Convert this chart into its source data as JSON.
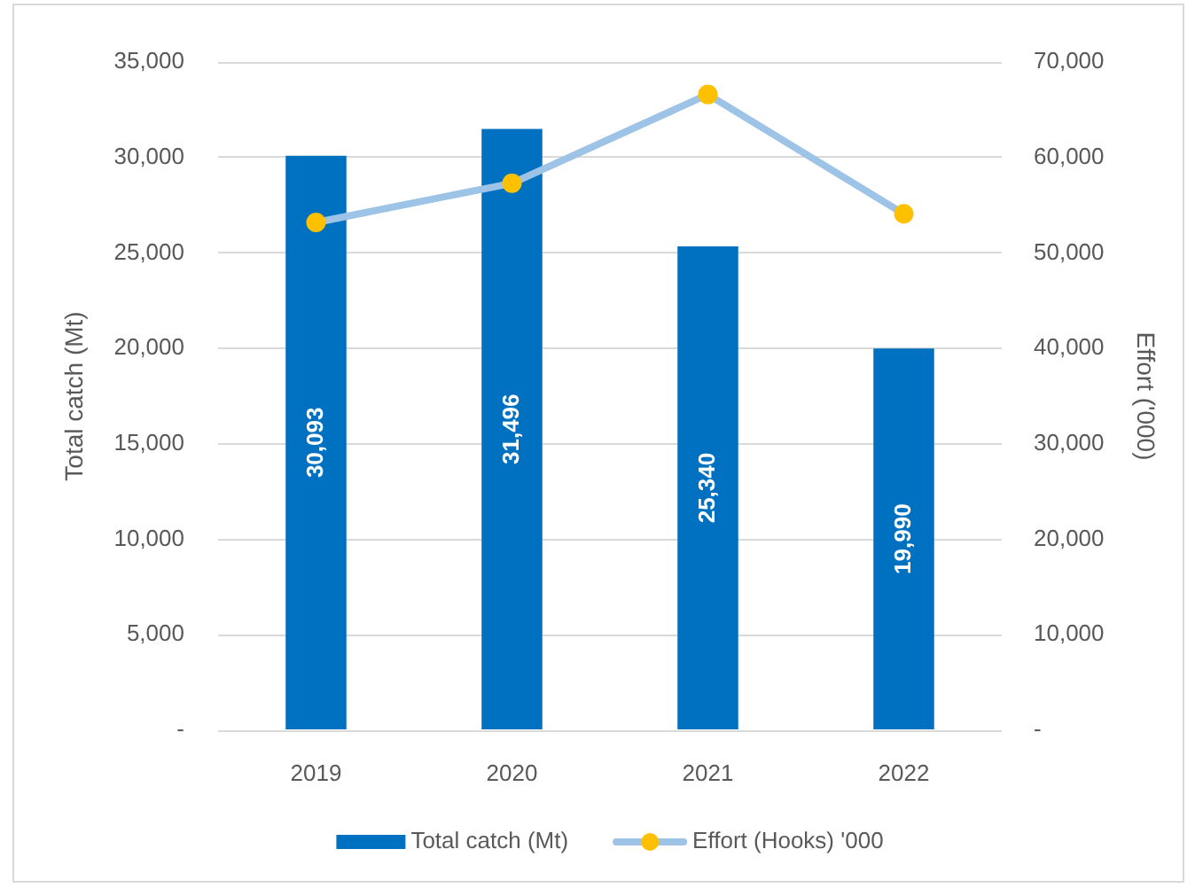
{
  "chart_data": {
    "type": "bar",
    "categories": [
      "2019",
      "2020",
      "2021",
      "2022"
    ],
    "series": [
      {
        "name": "Total catch (Mt)",
        "color": "#0070c0",
        "values": [
          30093,
          31496,
          25340,
          19990
        ],
        "value_labels": [
          "30,093",
          "31,496",
          "25,340",
          "19,990"
        ]
      },
      {
        "name": "Effort (Hooks) '000",
        "type": "line",
        "axis": "y2",
        "color": "#9dc3e6",
        "colors": [
          "#ffc000",
          "#ffc000",
          "#ffc000",
          "#ffc000"
        ],
        "values": [
          53200,
          57300,
          66600,
          54100
        ]
      }
    ],
    "ylabel": "Total catch (Mt)",
    "y2label": "Effort ('000)",
    "ylim": [
      0,
      35000
    ],
    "yticks": [
      {
        "value": 0,
        "label": "-"
      },
      {
        "value": 5000,
        "label": "5,000"
      },
      {
        "value": 10000,
        "label": "10,000"
      },
      {
        "value": 15000,
        "label": "15,000"
      },
      {
        "value": 20000,
        "label": "20,000"
      },
      {
        "value": 25000,
        "label": "25,000"
      },
      {
        "value": 30000,
        "label": "30,000"
      },
      {
        "value": 35000,
        "label": "35,000"
      }
    ],
    "y2lim": [
      0,
      70000
    ],
    "y2ticks": [
      {
        "value": 0,
        "label": "-"
      },
      {
        "value": 10000,
        "label": "10,000"
      },
      {
        "value": 20000,
        "label": "20,000"
      },
      {
        "value": 30000,
        "label": "30,000"
      },
      {
        "value": 40000,
        "label": "40,000"
      },
      {
        "value": 50000,
        "label": "50,000"
      },
      {
        "value": 60000,
        "label": "60,000"
      },
      {
        "value": 70000,
        "label": "70,000"
      }
    ],
    "grid": "y",
    "legend": "bottom",
    "marker": "circle"
  }
}
